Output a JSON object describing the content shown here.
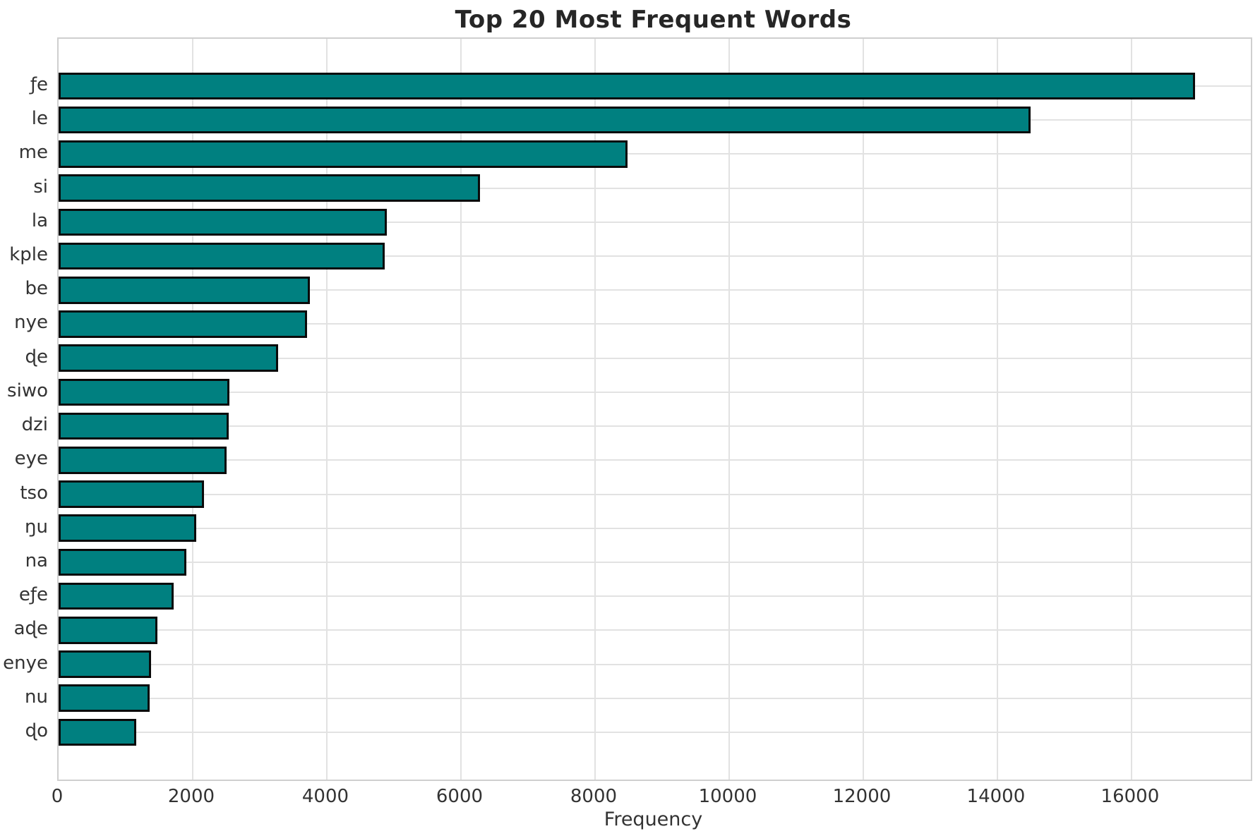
{
  "chart_data": {
    "type": "bar",
    "orientation": "horizontal",
    "title": "Top 20 Most Frequent Words",
    "xlabel": "Frequency",
    "ylabel": "",
    "categories": [
      "ƒe",
      "le",
      "me",
      "si",
      "la",
      "kple",
      "be",
      "nye",
      "ɖe",
      "siwo",
      "dzi",
      "eye",
      "tso",
      "ŋu",
      "na",
      "eƒe",
      "aɖe",
      "enye",
      "nu",
      "ɖo"
    ],
    "values": [
      16950,
      14500,
      8480,
      6280,
      4890,
      4860,
      3750,
      3710,
      3270,
      2550,
      2540,
      2510,
      2170,
      2050,
      1910,
      1720,
      1470,
      1380,
      1360,
      1160
    ],
    "xticks": [
      0,
      2000,
      4000,
      6000,
      8000,
      10000,
      12000,
      14000,
      16000
    ],
    "xlim": [
      0,
      17780
    ],
    "grid": true,
    "legend": null,
    "bar_color": "#008080",
    "bar_edge_color": "#0a0a0a",
    "grid_color": "#e2e2e2",
    "background_color": "#ffffff"
  }
}
